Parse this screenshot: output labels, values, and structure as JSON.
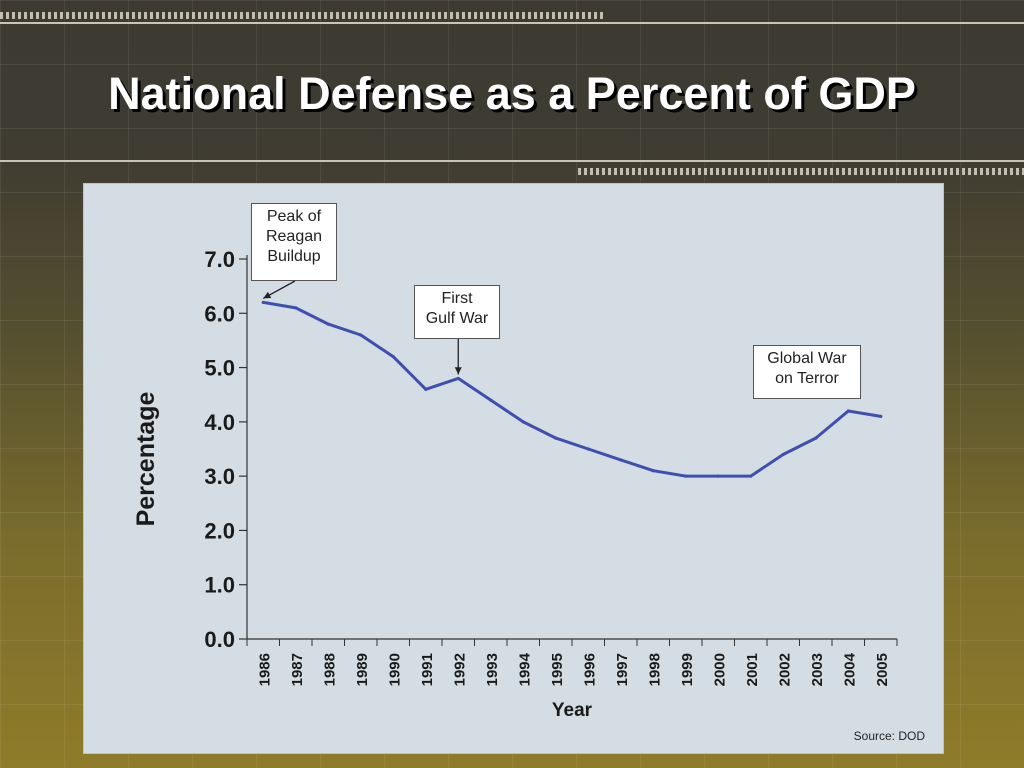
{
  "slide": {
    "title": "National Defense as a Percent of GDP"
  },
  "chart_data": {
    "type": "line",
    "title": "",
    "xlabel": "Year",
    "ylabel": "Percentage",
    "x": [
      "1986",
      "1987",
      "1988",
      "1989",
      "1990",
      "1991",
      "1992",
      "1993",
      "1994",
      "1995",
      "1996",
      "1997",
      "1998",
      "1999",
      "2000",
      "2001",
      "2002",
      "2003",
      "2004",
      "2005"
    ],
    "series": [
      {
        "values": [
          6.2,
          6.1,
          5.8,
          5.6,
          5.2,
          4.6,
          4.8,
          4.4,
          4.0,
          3.7,
          3.5,
          3.3,
          3.1,
          3.0,
          3.0,
          3.0,
          3.4,
          3.7,
          4.2,
          4.1
        ]
      }
    ],
    "yticks": [
      "0.0",
      "1.0",
      "2.0",
      "3.0",
      "4.0",
      "5.0",
      "6.0",
      "7.0"
    ],
    "ylim": [
      0,
      7
    ],
    "grid": false,
    "line_color": "#3f4fb0",
    "annotations": [
      {
        "text": "Peak of\nReagan\nBuildup",
        "year": "1986"
      },
      {
        "text": "First\nGulf War",
        "year": "1992"
      },
      {
        "text": "Global War\non Terror",
        "year": "2004"
      }
    ],
    "source": "Source: DOD"
  }
}
